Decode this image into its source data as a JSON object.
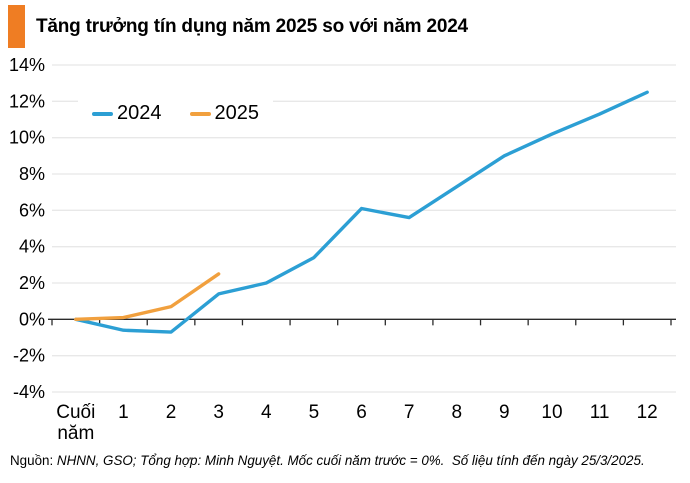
{
  "header": {
    "title": "Tăng trưởng tín dụng năm 2025 so với năm 2024",
    "accent_color": "#EF7D23"
  },
  "footer": {
    "prefix": "Nguồn:",
    "text": "NHNN, GSO; Tổng hợp: Minh Nguyệt. Mốc cuối năm trước = 0%.  Số liệu tính đến ngày 25/3/2025."
  },
  "colors": {
    "grid": "#e8e8e8",
    "axis": "#2b2b2b",
    "text": "#000000",
    "blue_2024": "#2C9FD4",
    "orange_2025": "#F1A03E"
  },
  "chart_data": {
    "type": "line",
    "title": "Tăng trưởng tín dụng năm 2025 so với năm 2024",
    "categories": [
      "Cuối\nnăm",
      "1",
      "2",
      "3",
      "4",
      "5",
      "6",
      "7",
      "8",
      "9",
      "10",
      "11",
      "12"
    ],
    "series": [
      {
        "name": "2024",
        "color": "#2C9FD4",
        "values": [
          0,
          -0.6,
          -0.7,
          1.4,
          2.0,
          3.4,
          6.1,
          5.6,
          7.3,
          9.0,
          10.2,
          11.3,
          12.5
        ]
      },
      {
        "name": "2025",
        "color": "#F1A03E",
        "values": [
          0,
          0.1,
          0.7,
          2.5
        ]
      }
    ],
    "xlabel": "",
    "ylabel": "",
    "ylim": [
      -4,
      14
    ],
    "ytick_step": 2,
    "ytick_labels": [
      "14%",
      "12%",
      "10%",
      "8%",
      "6%",
      "4%",
      "2%",
      "0%",
      "-2%",
      "-4%"
    ],
    "grid": true,
    "legend_position": "top-left",
    "baseline_note": "Mốc cuối năm trước = 0%"
  }
}
